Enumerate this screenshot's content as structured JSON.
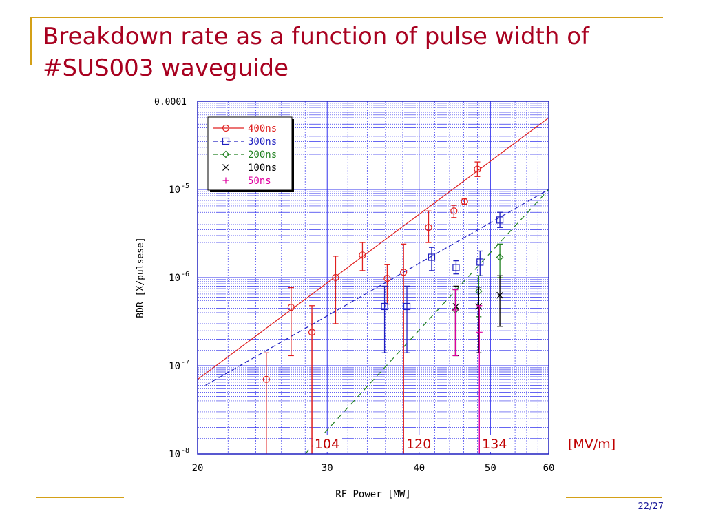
{
  "slide": {
    "title_line1": "Breakdown rate as a function of pulse width of",
    "title_line2": "#SUS003 waveguide",
    "page_number": "22/27"
  },
  "colors": {
    "accent_line": "#d4a017",
    "title": "#a8001f",
    "grid": "#3333ee",
    "s400": "#e02020",
    "s300": "#2020c0",
    "s200": "#208020",
    "s100": "#000000",
    "s50": "#e000a0",
    "mv_markers": "#c00000"
  },
  "chart_data": {
    "type": "scatter",
    "title": "",
    "xlabel": "RF Power [MW]",
    "ylabel": "BDR [X/pulsese]",
    "x_scale": "log",
    "y_scale": "log",
    "xlim": [
      20,
      60
    ],
    "ylim": [
      1e-08,
      0.0001
    ],
    "x_ticks": [
      {
        "value": 20,
        "label": "20"
      },
      {
        "value": 30,
        "label": "30"
      },
      {
        "value": 40,
        "label": "40"
      },
      {
        "value": 50,
        "label": "50"
      },
      {
        "value": 60,
        "label": "60"
      }
    ],
    "y_ticks": [
      {
        "value": 1e-08,
        "base": "10",
        "exp": "-8",
        "label": ""
      },
      {
        "value": 1e-07,
        "base": "10",
        "exp": "-7",
        "label": ""
      },
      {
        "value": 1e-06,
        "base": "10",
        "exp": "-6",
        "label": ""
      },
      {
        "value": 1e-05,
        "base": "10",
        "exp": "-5",
        "label": ""
      },
      {
        "value": 0.0001,
        "base": "",
        "exp": "",
        "label": "0.0001"
      }
    ],
    "grid": true,
    "legend_position": "top-left",
    "series": [
      {
        "name": "400ns",
        "marker": "circle",
        "color": "#e02020",
        "legend_style": "solid",
        "points": [
          {
            "x": 24.8,
            "y": 7e-08,
            "lo": 1e-08,
            "hi": 1.4e-07
          },
          {
            "x": 26.8,
            "y": 4.6e-07,
            "lo": 1.3e-07,
            "hi": 7.7e-07
          },
          {
            "x": 28.6,
            "y": 2.4e-07,
            "lo": 1e-08,
            "hi": 4.8e-07
          },
          {
            "x": 30.8,
            "y": 1e-06,
            "lo": 3e-07,
            "hi": 1.75e-06
          },
          {
            "x": 33.5,
            "y": 1.8e-06,
            "lo": 1.2e-06,
            "hi": 2.5e-06
          },
          {
            "x": 36.2,
            "y": 9.8e-07,
            "lo": 5e-07,
            "hi": 1.4e-06
          },
          {
            "x": 38.1,
            "y": 1.15e-06,
            "lo": 1e-08,
            "hi": 2.4e-06
          },
          {
            "x": 41.2,
            "y": 3.7e-06,
            "lo": 2.5e-06,
            "hi": 5.7e-06
          },
          {
            "x": 44.6,
            "y": 5.7e-06,
            "lo": 4.8e-06,
            "hi": 6.6e-06
          },
          {
            "x": 46.1,
            "y": 7.3e-06,
            "lo": 6.8e-06,
            "hi": 7.8e-06
          },
          {
            "x": 48.0,
            "y": 1.7e-05,
            "lo": 1.4e-05,
            "hi": 2.05e-05
          }
        ],
        "fit": [
          {
            "x": 20,
            "y": 7e-08
          },
          {
            "x": 60,
            "y": 6.5e-05
          }
        ]
      },
      {
        "name": "300ns",
        "marker": "square",
        "color": "#2020c0",
        "legend_style": "dashed",
        "points": [
          {
            "x": 35.9,
            "y": 4.7e-07,
            "lo": 1.4e-07,
            "hi": 8e-07
          },
          {
            "x": 38.5,
            "y": 4.7e-07,
            "lo": 1.4e-07,
            "hi": 8e-07
          },
          {
            "x": 41.6,
            "y": 1.7e-06,
            "lo": 1.2e-06,
            "hi": 2.2e-06
          },
          {
            "x": 44.9,
            "y": 1.3e-06,
            "lo": 1.1e-06,
            "hi": 1.55e-06
          },
          {
            "x": 48.4,
            "y": 1.5e-06,
            "lo": 1.05e-06,
            "hi": 2e-06
          },
          {
            "x": 51.5,
            "y": 4.5e-06,
            "lo": 3.7e-06,
            "hi": 5.5e-06
          }
        ],
        "fit": [
          {
            "x": 20.5,
            "y": 6e-08
          },
          {
            "x": 60,
            "y": 1e-05
          }
        ]
      },
      {
        "name": "200ns",
        "marker": "diamond",
        "color": "#208020",
        "legend_style": "dashed",
        "points": [
          {
            "x": 44.8,
            "y": 4.3e-07,
            "lo": 1.3e-07,
            "hi": 7.3e-07
          },
          {
            "x": 48.2,
            "y": 7e-07,
            "lo": 3.6e-07,
            "hi": 1.05e-06
          },
          {
            "x": 51.5,
            "y": 1.7e-06,
            "lo": 1e-06,
            "hi": 2.4e-06
          }
        ],
        "fit": [
          {
            "x": 28.0,
            "y": 1e-08
          },
          {
            "x": 60,
            "y": 1e-05
          }
        ]
      },
      {
        "name": "100ns",
        "marker": "cross",
        "color": "#000000",
        "legend_style": "none",
        "points": [
          {
            "x": 44.9,
            "y": 4.7e-07,
            "lo": 1.3e-07,
            "hi": 8e-07
          },
          {
            "x": 48.2,
            "y": 4.7e-07,
            "lo": 1.4e-07,
            "hi": 7.8e-07
          },
          {
            "x": 51.5,
            "y": 6.3e-07,
            "lo": 2.8e-07,
            "hi": 1.05e-06
          }
        ]
      },
      {
        "name": "50ns",
        "marker": "plus",
        "color": "#e000a0",
        "legend_style": "none",
        "points": [
          {
            "x": 44.8,
            "y": 4.3e-07,
            "lo": 1.3e-07,
            "hi": 7.3e-07
          },
          {
            "x": 48.3,
            "y": 2.4e-07,
            "lo": 1e-08,
            "hi": 4.8e-07
          }
        ]
      }
    ],
    "field_markers": {
      "unit": "[MV/m]",
      "items": [
        {
          "label": "104",
          "x": 28.6
        },
        {
          "label": "120",
          "x": 38.1
        },
        {
          "label": "134",
          "x": 48.3
        }
      ]
    }
  }
}
